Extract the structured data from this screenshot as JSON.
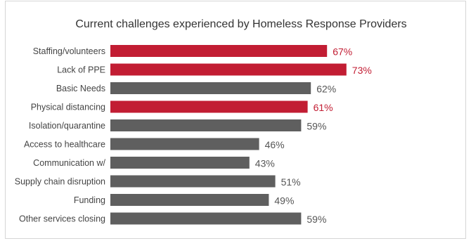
{
  "chart_data": {
    "type": "bar",
    "orientation": "horizontal",
    "title": "Current challenges experienced by Homeless Response Providers",
    "categories": [
      "Staffing/volunteers",
      "Lack of PPE",
      "Basic Needs",
      "Physical distancing",
      "Isolation/quarantine",
      "Access to healthcare",
      "Communication w/",
      "Supply chain disruption",
      "Funding",
      "Other services closing"
    ],
    "values": [
      67,
      73,
      62,
      61,
      59,
      46,
      43,
      51,
      49,
      59
    ],
    "labels": [
      "67%",
      "73%",
      "62%",
      "61%",
      "59%",
      "46%",
      "43%",
      "51%",
      "49%",
      "59%"
    ],
    "highlighted": [
      true,
      true,
      false,
      true,
      false,
      false,
      false,
      false,
      false,
      false
    ],
    "xlim": [
      0,
      100
    ],
    "grid": false,
    "legend": "none"
  },
  "colors": {
    "highlight": "#c21d33",
    "default": "#5f5f5f",
    "highlight_text": "#c21d33",
    "default_text": "#555555"
  }
}
